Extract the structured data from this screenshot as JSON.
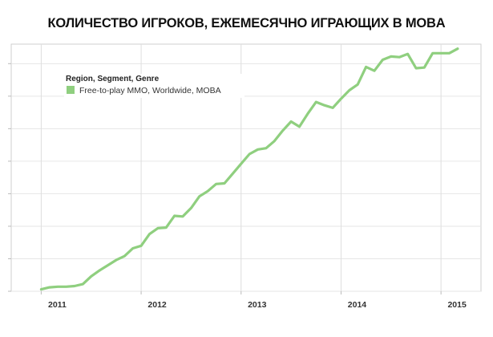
{
  "chart_data": {
    "type": "line",
    "title": "КОЛИЧЕСТВО ИГРОКОВ, ЕЖЕМЕСЯЧНО ИГРАЮЩИХ В MOBA",
    "legend": {
      "title": "Region, Segment, Genre",
      "position": "top-left"
    },
    "series": [
      {
        "name": "Free-to-play MMO, Worldwide, MOBA",
        "color": "#8fcf7f",
        "x": [
          2011.0,
          2011.0833,
          2011.1667,
          2011.25,
          2011.3333,
          2011.4167,
          2011.5,
          2011.5833,
          2011.6667,
          2011.75,
          2011.8333,
          2011.9167,
          2012.0,
          2012.0833,
          2012.1667,
          2012.25,
          2012.3333,
          2012.4167,
          2012.5,
          2012.5833,
          2012.6667,
          2012.75,
          2012.8333,
          2012.9167,
          2013.0,
          2013.0833,
          2013.1667,
          2013.25,
          2013.3333,
          2013.4167,
          2013.5,
          2013.5833,
          2013.6667,
          2013.75,
          2013.8333,
          2013.9167,
          2014.0,
          2014.0833,
          2014.1667,
          2014.25,
          2014.3333,
          2014.4167,
          2014.5,
          2014.5833,
          2014.6667,
          2014.75,
          2014.8333,
          2014.9167,
          2015.0,
          2015.0833,
          2015.1667
        ],
        "values": [
          0.3,
          0.6,
          0.7,
          0.7,
          0.8,
          1.1,
          2.3,
          3.2,
          4.0,
          4.8,
          5.4,
          6.6,
          7.0,
          8.8,
          9.7,
          9.8,
          11.6,
          11.5,
          12.8,
          14.6,
          15.4,
          16.5,
          16.6,
          18.1,
          19.6,
          21.1,
          21.8,
          22.0,
          23.1,
          24.7,
          26.1,
          25.3,
          27.3,
          29.1,
          28.6,
          28.2,
          29.6,
          30.9,
          31.8,
          34.5,
          33.9,
          35.6,
          36.1,
          36.0,
          36.5,
          34.3,
          34.4,
          36.6,
          36.6,
          36.6,
          37.3
        ]
      }
    ],
    "x_ticks": [
      "2011",
      "2012",
      "2013",
      "2014",
      "2015"
    ],
    "x_tick_values": [
      2011,
      2012,
      2013,
      2014,
      2015
    ],
    "xlim": [
      2010.7,
      2015.4
    ],
    "ylim": [
      0,
      38
    ],
    "y_gridlines": [
      0,
      5,
      10,
      15,
      20,
      25,
      30,
      35
    ],
    "grid": true
  }
}
